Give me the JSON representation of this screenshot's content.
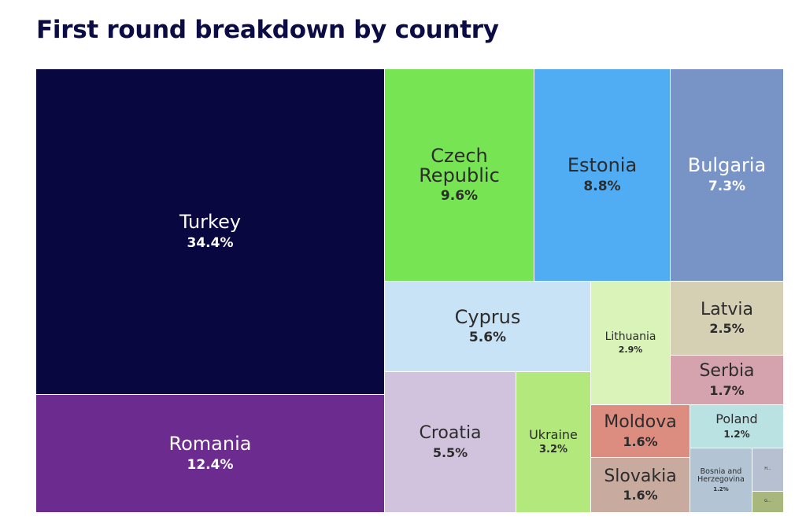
{
  "chart_data": {
    "type": "treemap",
    "title": "First round breakdown by country",
    "unit": "%",
    "items": [
      {
        "name": "Turkey",
        "value": 34.4,
        "label": "34.4%",
        "color": "#08073f",
        "text_color": "#ffffff"
      },
      {
        "name": "Romania",
        "value": 12.4,
        "label": "12.4%",
        "color": "#6b2b8f",
        "text_color": "#ffffff"
      },
      {
        "name": "Czech Republic",
        "value": 9.6,
        "label": "9.6%",
        "color": "#77e454",
        "text_color": "#2c2c2c"
      },
      {
        "name": "Estonia",
        "value": 8.8,
        "label": "8.8%",
        "color": "#50adf4",
        "text_color": "#2c2c2c"
      },
      {
        "name": "Bulgaria",
        "value": 7.3,
        "label": "7.3%",
        "color": "#7893c6",
        "text_color": "#ffffff"
      },
      {
        "name": "Cyprus",
        "value": 5.6,
        "label": "5.6%",
        "color": "#c9e3f6",
        "text_color": "#2c2c2c"
      },
      {
        "name": "Croatia",
        "value": 5.5,
        "label": "5.5%",
        "color": "#d1c3dd",
        "text_color": "#2c2c2c"
      },
      {
        "name": "Ukraine",
        "value": 3.2,
        "label": "3.2%",
        "color": "#b2e87c",
        "text_color": "#2c2c2c"
      },
      {
        "name": "Lithuania",
        "value": 2.9,
        "label": "2.9%",
        "color": "#d9f3b8",
        "text_color": "#2c2c2c"
      },
      {
        "name": "Latvia",
        "value": 2.5,
        "label": "2.5%",
        "color": "#d5cfb4",
        "text_color": "#2c2c2c"
      },
      {
        "name": "Serbia",
        "value": 1.7,
        "label": "1.7%",
        "color": "#d4a3ad",
        "text_color": "#2c2c2c"
      },
      {
        "name": "Moldova",
        "value": 1.6,
        "label": "1.6%",
        "color": "#dd8d80",
        "text_color": "#2c2c2c"
      },
      {
        "name": "Slovakia",
        "value": 1.6,
        "label": "1.6%",
        "color": "#c8aa9f",
        "text_color": "#2c2c2c"
      },
      {
        "name": "Poland",
        "value": 1.2,
        "label": "1.2%",
        "color": "#bbe2e3",
        "text_color": "#2c2c2c"
      },
      {
        "name": "Bosnia and Herzegovina",
        "value": 1.2,
        "label": "1.2%",
        "color": "#b3c5d4",
        "text_color": "#2c2c2c"
      },
      {
        "name": "H...",
        "value": null,
        "label": "",
        "color": "#b7c0d0",
        "text_color": "#2c2c2c"
      },
      {
        "name": "G...",
        "value": null,
        "label": "",
        "color": "#a8b87c",
        "text_color": "#2c2c2c"
      }
    ]
  }
}
